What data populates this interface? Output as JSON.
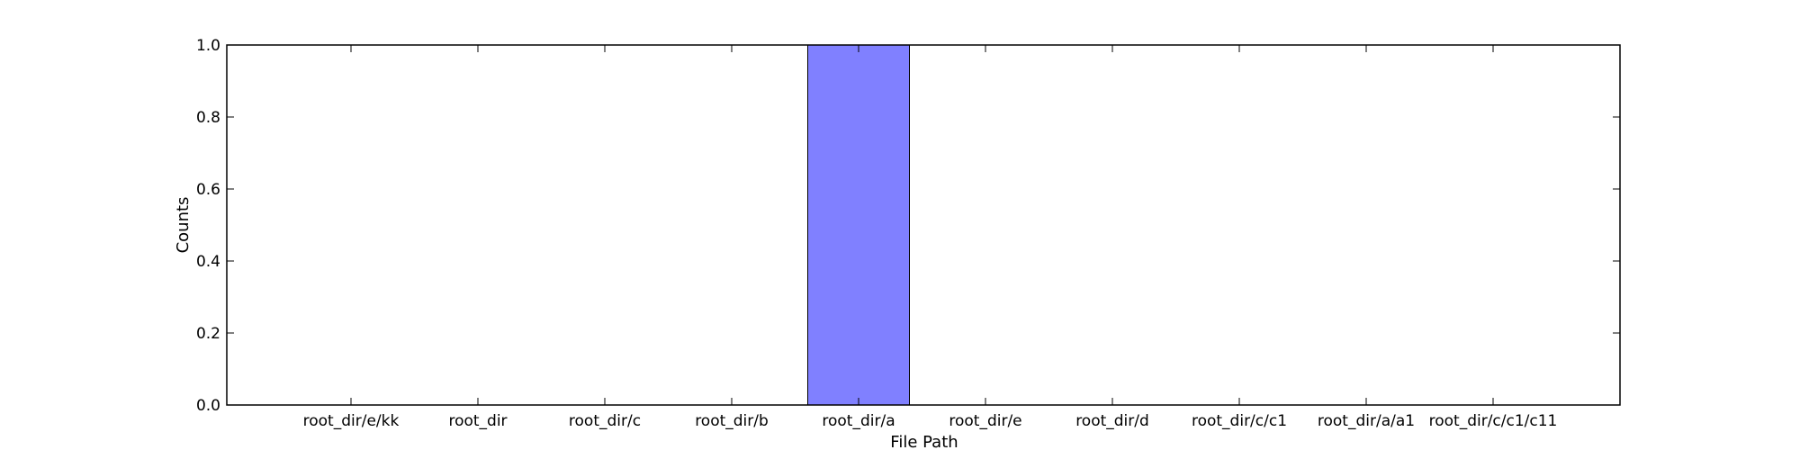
{
  "chart_data": {
    "type": "bar",
    "title": "",
    "xlabel": "File Path",
    "ylabel": "Counts",
    "categories": [
      "root_dir/e/kk",
      "root_dir",
      "root_dir/c",
      "root_dir/b",
      "root_dir/a",
      "root_dir/e",
      "root_dir/d",
      "root_dir/c/c1",
      "root_dir/a/a1",
      "root_dir/c/c1/c11"
    ],
    "values": [
      0,
      0,
      0,
      0,
      1,
      0,
      0,
      0,
      0,
      0
    ],
    "ylim": [
      0,
      1.0
    ],
    "yticks": [
      "0.0",
      "0.2",
      "0.4",
      "0.6",
      "0.8",
      "1.0"
    ],
    "grid": false,
    "colors": {
      "bar": "#8080ff",
      "bar_edge": "#000000",
      "axis": "#000000"
    }
  }
}
